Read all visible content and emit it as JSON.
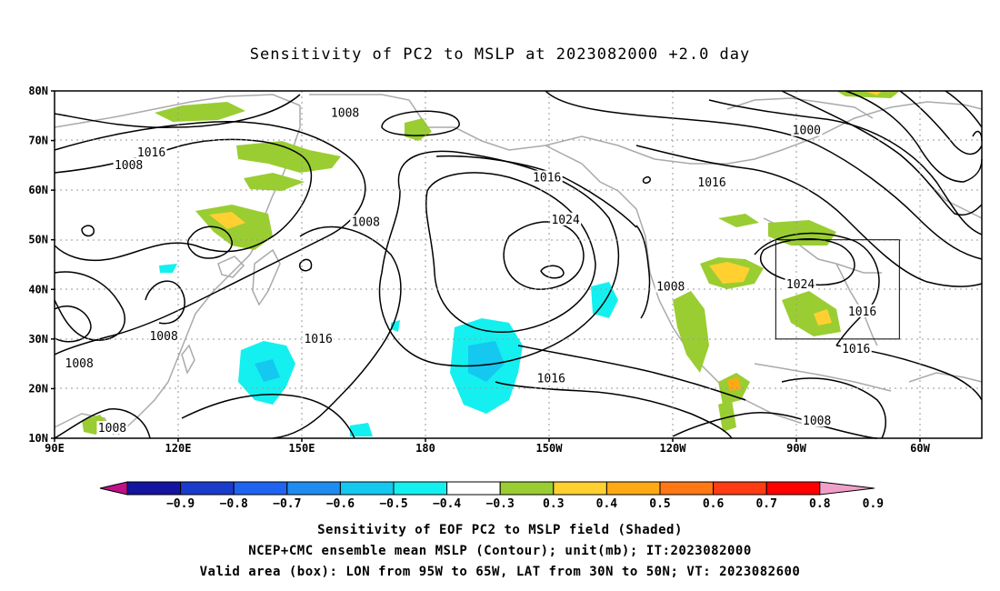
{
  "title": "Sensitivity of PC2 to MSLP at 2023082000 +2.0 day",
  "lat_labels": [
    "80N",
    "70N",
    "60N",
    "50N",
    "40N",
    "30N",
    "20N",
    "10N"
  ],
  "lon_labels": [
    "90E",
    "120E",
    "150E",
    "180",
    "150W",
    "120W",
    "90W",
    "60W"
  ],
  "contour_labels": [
    {
      "text": "1008",
      "lon": 160.5,
      "lat": 75.5
    },
    {
      "text": "1016",
      "lon": 113.5,
      "lat": 67.5
    },
    {
      "text": "1008",
      "lon": 108.0,
      "lat": 65.0
    },
    {
      "text": "1016",
      "lon": -150.5,
      "lat": 62.5
    },
    {
      "text": "1016",
      "lon": -110.5,
      "lat": 61.5
    },
    {
      "text": "1000",
      "lon": -87.5,
      "lat": 72.0
    },
    {
      "text": "1008",
      "lon": 165.5,
      "lat": 53.5
    },
    {
      "text": "1024",
      "lon": -146.0,
      "lat": 54.0
    },
    {
      "text": "1008",
      "lon": -120.5,
      "lat": 40.5
    },
    {
      "text": "1024",
      "lon": -89.0,
      "lat": 41.0
    },
    {
      "text": "1016",
      "lon": -74.0,
      "lat": 35.5
    },
    {
      "text": "1008",
      "lon": 116.5,
      "lat": 30.5
    },
    {
      "text": "1016",
      "lon": 154.0,
      "lat": 30.0
    },
    {
      "text": "1008",
      "lon": 96.0,
      "lat": 25.0
    },
    {
      "text": "1016",
      "lon": -149.5,
      "lat": 22.0
    },
    {
      "text": "1016",
      "lon": -75.5,
      "lat": 28.0
    },
    {
      "text": "1008",
      "lon": 104.0,
      "lat": 12.0
    },
    {
      "text": "1008",
      "lon": -85.0,
      "lat": 13.5
    }
  ],
  "colorbar": {
    "labels": [
      "-0.9",
      "-0.8",
      "-0.7",
      "-0.6",
      "-0.5",
      "-0.4",
      "-0.3",
      "0.3",
      "0.4",
      "0.5",
      "0.6",
      "0.7",
      "0.8",
      "0.9"
    ],
    "colors": [
      "#c0108a",
      "#1414a0",
      "#1a3ccd",
      "#1f64f0",
      "#1e8cf0",
      "#14c8f0",
      "#14f0f0",
      "#ffffff",
      "#9acd32",
      "#ffd030",
      "#ffaa14",
      "#ff7814",
      "#ff3c14",
      "#ff0000",
      "#f0a0c8"
    ]
  },
  "captions": [
    "Sensitivity of EOF PC2 to MSLP field (Shaded)",
    "NCEP+CMC ensemble mean MSLP (Contour); unit(mb); IT:2023082000",
    "Valid area (box): LON from 95W to 65W, LAT from 30N to 50N; VT: 2023082600"
  ],
  "valid_box": {
    "lon_w": -95,
    "lon_e": -65,
    "lat_s": 30,
    "lat_n": 50
  },
  "map_extent": {
    "lon_min": 90,
    "lon_max": 315,
    "lat_min": 10,
    "lat_max": 80
  }
}
